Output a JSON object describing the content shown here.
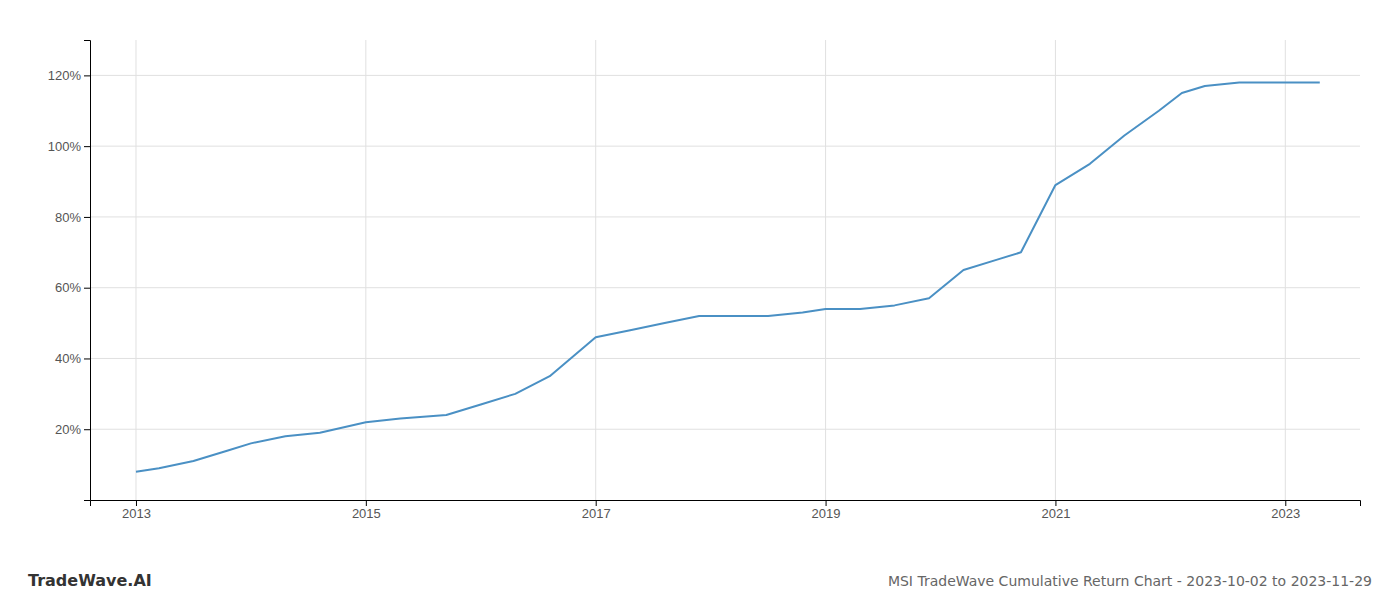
{
  "chart_data": {
    "type": "line",
    "title": "MSI TradeWave Cumulative Return Chart - 2023-10-02 to 2023-11-29",
    "annotations": [
      "TradeWave.AI"
    ],
    "color": "#4a90c4",
    "grid": true,
    "x": [
      2013.0,
      2013.2,
      2013.5,
      2013.8,
      2014.0,
      2014.3,
      2014.6,
      2015.0,
      2015.3,
      2015.7,
      2016.0,
      2016.3,
      2016.6,
      2017.0,
      2017.3,
      2017.6,
      2017.9,
      2018.2,
      2018.5,
      2018.8,
      2019.0,
      2019.3,
      2019.6,
      2019.9,
      2020.2,
      2020.5,
      2020.7,
      2021.0,
      2021.3,
      2021.6,
      2021.9,
      2022.1,
      2022.3,
      2022.6,
      2022.9,
      2023.0,
      2023.3
    ],
    "values": [
      8,
      9,
      11,
      14,
      16,
      18,
      19,
      22,
      23,
      24,
      27,
      30,
      35,
      46,
      48,
      50,
      52,
      52,
      52,
      53,
      54,
      54,
      55,
      57,
      65,
      68,
      70,
      89,
      95,
      103,
      110,
      115,
      117,
      118,
      118,
      118,
      118
    ],
    "xlim": [
      2012.6,
      2023.65
    ],
    "ylim": [
      0,
      130
    ],
    "xticks": [
      2013,
      2015,
      2017,
      2019,
      2021,
      2023
    ],
    "yticks": [
      {
        "value": 20,
        "label": "20%"
      },
      {
        "value": 40,
        "label": "40%"
      },
      {
        "value": 60,
        "label": "60%"
      },
      {
        "value": 80,
        "label": "80%"
      },
      {
        "value": 100,
        "label": "100%"
      },
      {
        "value": 120,
        "label": "120%"
      }
    ]
  }
}
